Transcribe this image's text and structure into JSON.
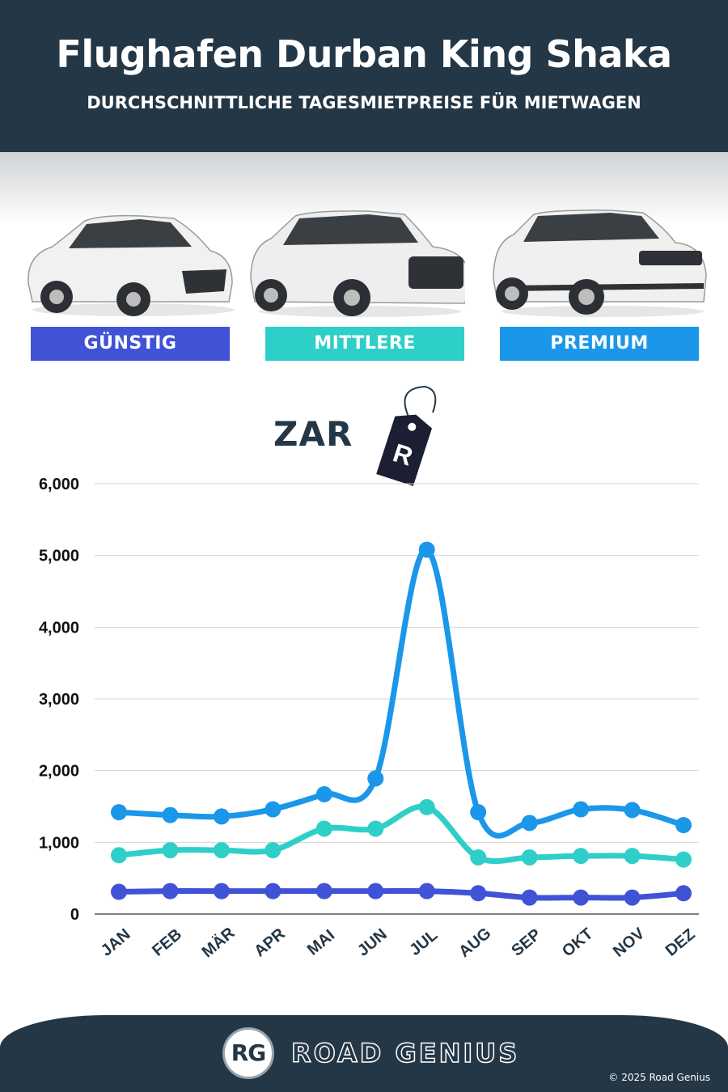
{
  "header": {
    "title": "Flughafen Durban King Shaka",
    "subtitle": "DURCHSCHNITTLICHE TAGESMIETPREISE FÜR MIETWAGEN"
  },
  "categories": [
    {
      "label": "GÜNSTIG",
      "color": "#4053d6"
    },
    {
      "label": "MITTLERE",
      "color": "#2ecfc8"
    },
    {
      "label": "PREMIUM",
      "color": "#1b97ea"
    }
  ],
  "currency": {
    "label": "ZAR",
    "tag_symbol": "R"
  },
  "chart_data": {
    "type": "line",
    "x": [
      "JAN",
      "FEB",
      "MÄR",
      "APR",
      "MAI",
      "JUN",
      "JUL",
      "AUG",
      "SEP",
      "OKT",
      "NOV",
      "DEZ"
    ],
    "ylim": [
      0,
      6000
    ],
    "yticks": [
      "0",
      "1,000",
      "2,000",
      "3,000",
      "4,000",
      "5,000",
      "6,000"
    ],
    "grid": true,
    "series": [
      {
        "color": "#4053d6",
        "values": [
          310,
          320,
          320,
          320,
          320,
          320,
          320,
          290,
          230,
          230,
          230,
          290
        ]
      },
      {
        "color": "#2ecfc8",
        "values": [
          820,
          890,
          890,
          890,
          1190,
          1190,
          1490,
          790,
          790,
          810,
          810,
          760
        ]
      },
      {
        "color": "#1b97ea",
        "values": [
          1420,
          1380,
          1360,
          1460,
          1670,
          1890,
          5080,
          1420,
          1270,
          1460,
          1450,
          1240
        ]
      }
    ]
  },
  "footer": {
    "logo_text": "RG",
    "brand": "ROAD GENIUS",
    "copyright": "© 2025 Road Genius"
  }
}
